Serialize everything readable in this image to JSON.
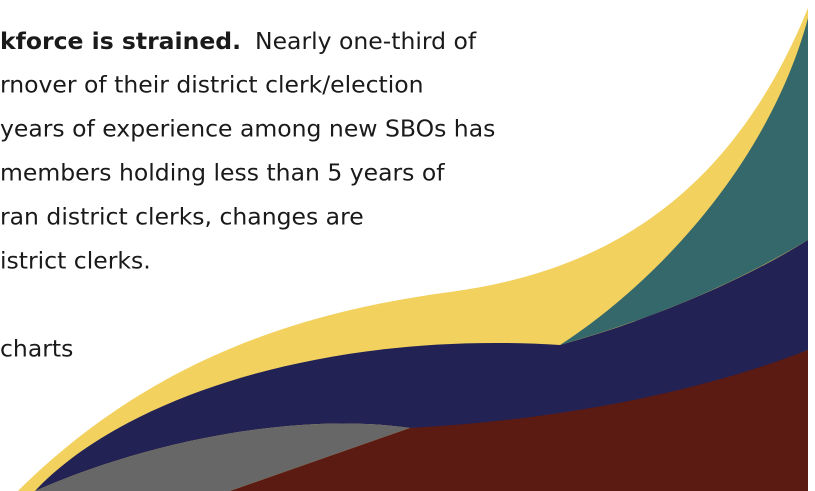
{
  "paragraph": {
    "lead": "kforce is strained.",
    "first_line_rest": "Nearly one-third of",
    "lines": [
      "rnover of their district clerk/election",
      "years of experience among new SBOs has",
      "members holding less than 5 years of",
      "ran district clerks, changes are",
      "istrict clerks."
    ]
  },
  "caption": "charts"
}
